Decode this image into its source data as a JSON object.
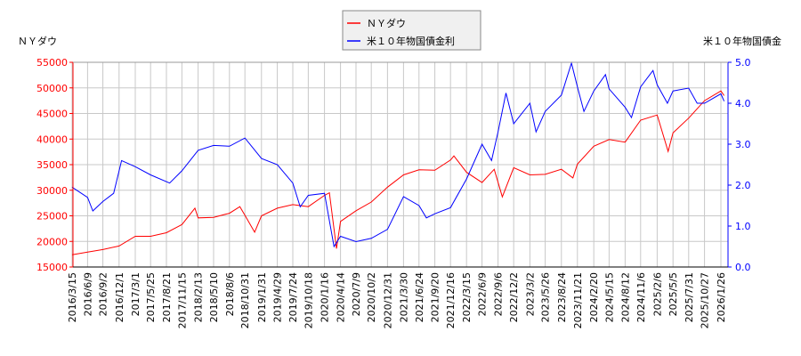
{
  "chart_data": {
    "type": "line",
    "left_axis": {
      "label": "ＮＹダウ",
      "ylim": [
        15000,
        55000
      ],
      "ticks": [
        15000,
        20000,
        25000,
        30000,
        35000,
        40000,
        45000,
        50000,
        55000
      ],
      "color": "#ff0000"
    },
    "right_axis": {
      "label": "米１０年物国債金",
      "ylim": [
        0,
        5
      ],
      "ticks": [
        "0.0",
        "1.0",
        "2.0",
        "3.0",
        "4.0",
        "5.0"
      ],
      "color": "#0000ff"
    },
    "x_ticks": [
      "2016/3/15",
      "2016/6/9",
      "2016/9/2",
      "2016/12/1",
      "2017/3/1",
      "2017/5/25",
      "2017/8/21",
      "2017/11/15",
      "2018/2/13",
      "2018/5/10",
      "2018/8/6",
      "2018/10/31",
      "2019/1/31",
      "2019/4/29",
      "2019/7/24",
      "2019/10/18",
      "2020/1/16",
      "2020/4/14",
      "2020/7/9",
      "2020/10/2",
      "2020/12/31",
      "2021/3/30",
      "2021/6/24",
      "2021/9/20",
      "2021/12/16",
      "2022/3/15",
      "2022/6/9",
      "2022/9/6",
      "2022/12/2",
      "2023/3/2",
      "2023/5/26",
      "2023/8/24",
      "2023/11/21",
      "2024/2/20",
      "2024/5/15",
      "2024/8/12",
      "2024/11/6",
      "2025/2/6",
      "2025/5/5",
      "2025/7/31",
      "2025/10/27",
      "2026/1/26"
    ],
    "grid": true,
    "legend": "top-center",
    "series": [
      {
        "name": "ＮＹダウ",
        "axis": "left",
        "color": "#ff0000",
        "points": [
          [
            "2016/3/15",
            17400
          ],
          [
            "2016/6/9",
            17900
          ],
          [
            "2016/9/2",
            18400
          ],
          [
            "2016/12/1",
            19100
          ],
          [
            "2017/3/1",
            21000
          ],
          [
            "2017/5/25",
            21000
          ],
          [
            "2017/8/21",
            21700
          ],
          [
            "2017/11/15",
            23300
          ],
          [
            "2018/1/26",
            26500
          ],
          [
            "2018/2/13",
            24600
          ],
          [
            "2018/5/10",
            24700
          ],
          [
            "2018/8/6",
            25500
          ],
          [
            "2018/10/3",
            26800
          ],
          [
            "2018/10/31",
            25100
          ],
          [
            "2018/12/24",
            21800
          ],
          [
            "2019/1/31",
            25000
          ],
          [
            "2019/4/29",
            26500
          ],
          [
            "2019/7/24",
            27200
          ],
          [
            "2019/10/18",
            26800
          ],
          [
            "2020/1/16",
            29000
          ],
          [
            "2020/2/12",
            29500
          ],
          [
            "2020/3/23",
            18600
          ],
          [
            "2020/4/14",
            23900
          ],
          [
            "2020/7/9",
            26000
          ],
          [
            "2020/10/2",
            27700
          ],
          [
            "2020/12/31",
            30600
          ],
          [
            "2021/3/30",
            33000
          ],
          [
            "2021/6/24",
            34000
          ],
          [
            "2021/9/20",
            33900
          ],
          [
            "2021/12/16",
            35900
          ],
          [
            "2022/1/4",
            36700
          ],
          [
            "2022/3/15",
            33500
          ],
          [
            "2022/6/9",
            31500
          ],
          [
            "2022/8/16",
            34100
          ],
          [
            "2022/9/30",
            28700
          ],
          [
            "2022/12/2",
            34400
          ],
          [
            "2023/3/2",
            33000
          ],
          [
            "2023/5/26",
            33100
          ],
          [
            "2023/8/24",
            34100
          ],
          [
            "2023/10/27",
            32400
          ],
          [
            "2023/11/21",
            35100
          ],
          [
            "2024/2/20",
            38600
          ],
          [
            "2024/5/15",
            39900
          ],
          [
            "2024/8/12",
            39400
          ],
          [
            "2024/11/6",
            43700
          ],
          [
            "2025/2/6",
            44700
          ],
          [
            "2025/4/8",
            37600
          ],
          [
            "2025/5/5",
            41200
          ],
          [
            "2025/7/31",
            44100
          ],
          [
            "2025/10/27",
            47500
          ],
          [
            "2026/1/26",
            49400
          ],
          [
            "2026/2/13",
            48500
          ]
        ]
      },
      {
        "name": "米１０年物国債金利",
        "axis": "right",
        "color": "#0000ff",
        "points": [
          [
            "2016/3/15",
            1.95
          ],
          [
            "2016/6/9",
            1.7
          ],
          [
            "2016/7/8",
            1.37
          ],
          [
            "2016/9/2",
            1.6
          ],
          [
            "2016/11/1",
            1.8
          ],
          [
            "2016/12/15",
            2.6
          ],
          [
            "2017/3/1",
            2.45
          ],
          [
            "2017/5/25",
            2.25
          ],
          [
            "2017/9/8",
            2.05
          ],
          [
            "2017/11/15",
            2.35
          ],
          [
            "2018/2/13",
            2.85
          ],
          [
            "2018/5/10",
            2.97
          ],
          [
            "2018/8/6",
            2.95
          ],
          [
            "2018/10/31",
            3.15
          ],
          [
            "2019/1/31",
            2.65
          ],
          [
            "2019/4/29",
            2.5
          ],
          [
            "2019/7/24",
            2.05
          ],
          [
            "2019/9/3",
            1.47
          ],
          [
            "2019/10/18",
            1.75
          ],
          [
            "2020/1/16",
            1.8
          ],
          [
            "2020/3/9",
            0.5
          ],
          [
            "2020/4/14",
            0.75
          ],
          [
            "2020/7/9",
            0.62
          ],
          [
            "2020/10/2",
            0.7
          ],
          [
            "2020/12/31",
            0.92
          ],
          [
            "2021/3/30",
            1.72
          ],
          [
            "2021/6/24",
            1.5
          ],
          [
            "2021/8/4",
            1.2
          ],
          [
            "2021/9/20",
            1.3
          ],
          [
            "2021/12/16",
            1.45
          ],
          [
            "2022/3/15",
            2.15
          ],
          [
            "2022/6/9",
            3.0
          ],
          [
            "2022/8/1",
            2.6
          ],
          [
            "2022/9/6",
            3.3
          ],
          [
            "2022/10/20",
            4.25
          ],
          [
            "2022/12/2",
            3.5
          ],
          [
            "2023/3/2",
            4.0
          ],
          [
            "2023/4/5",
            3.3
          ],
          [
            "2023/5/26",
            3.8
          ],
          [
            "2023/8/24",
            4.2
          ],
          [
            "2023/10/19",
            4.98
          ],
          [
            "2023/11/21",
            4.4
          ],
          [
            "2023/12/27",
            3.8
          ],
          [
            "2024/2/20",
            4.3
          ],
          [
            "2024/4/25",
            4.7
          ],
          [
            "2024/5/15",
            4.35
          ],
          [
            "2024/8/12",
            3.9
          ],
          [
            "2024/9/16",
            3.65
          ],
          [
            "2024/11/6",
            4.4
          ],
          [
            "2025/1/14",
            4.8
          ],
          [
            "2025/2/6",
            4.45
          ],
          [
            "2025/4/4",
            4.0
          ],
          [
            "2025/5/5",
            4.3
          ],
          [
            "2025/7/31",
            4.37
          ],
          [
            "2025/9/16",
            4.0
          ],
          [
            "2025/10/27",
            4.0
          ],
          [
            "2026/1/26",
            4.23
          ],
          [
            "2026/2/13",
            4.05
          ]
        ]
      }
    ]
  }
}
